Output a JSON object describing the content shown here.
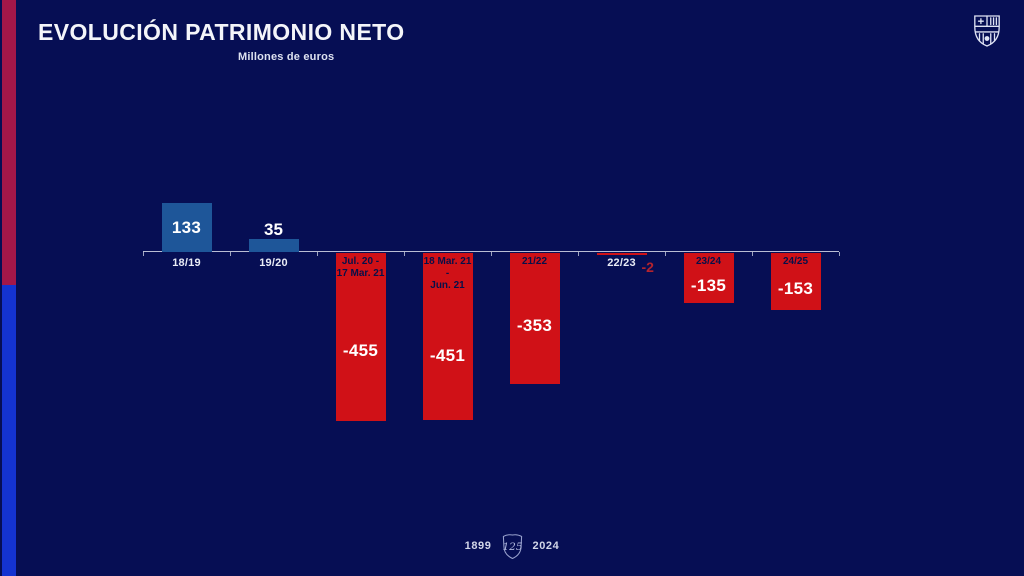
{
  "header": {
    "title": "EVOLUCIÓN PATRIMONIO NETO",
    "subtitle": "Millones de euros"
  },
  "branding": {
    "crest_icon": "fc-barcelona-crest",
    "anniversary_icon": "125-years-shield"
  },
  "footer": {
    "founded_year": "1899",
    "anniversary_year": "2024",
    "emblem_text": "125"
  },
  "theme": {
    "background": "#060e54",
    "stripe_top": "#a31749",
    "stripe_bottom": "#1433d1",
    "axis": "#b9bdd4",
    "positive_bar": "#1e5699",
    "negative_bar": "#d01117",
    "outside_value": "#b5232d",
    "inside_label": "#071049",
    "value_text": "#ffffff"
  },
  "chart_data": {
    "type": "bar",
    "title": "EVOLUCIÓN PATRIMONIO NETO",
    "ylabel": "Millones de euros",
    "xlabel": "",
    "ylim": [
      -470,
      140
    ],
    "grid": false,
    "legend": false,
    "categories": [
      "18/19",
      "19/20",
      "Jul. 20 - 17 Mar. 21",
      "18 Mar. 21 - Jun. 21",
      "21/22",
      "22/23",
      "23/24",
      "24/25"
    ],
    "values": [
      133,
      35,
      -455,
      -451,
      -353,
      -2,
      -135,
      -153
    ],
    "bars": [
      {
        "label_lines": [
          "18/19"
        ],
        "value": 133,
        "value_label": "133",
        "label_pos": "below",
        "value_pos": "inside"
      },
      {
        "label_lines": [
          "19/20"
        ],
        "value": 35,
        "value_label": "35",
        "label_pos": "below",
        "value_pos": "above"
      },
      {
        "label_lines": [
          "Jul. 20 -",
          "17 Mar. 21"
        ],
        "value": -455,
        "value_label": "-455",
        "label_pos": "inside",
        "value_pos": "inside"
      },
      {
        "label_lines": [
          "18 Mar. 21 -",
          "Jun. 21"
        ],
        "value": -451,
        "value_label": "-451",
        "label_pos": "inside",
        "value_pos": "inside"
      },
      {
        "label_lines": [
          "21/22"
        ],
        "value": -353,
        "value_label": "-353",
        "label_pos": "inside",
        "value_pos": "inside"
      },
      {
        "label_lines": [
          "22/23"
        ],
        "value": -2,
        "value_label": "-2",
        "label_pos": "below",
        "value_pos": "beside"
      },
      {
        "label_lines": [
          "23/24"
        ],
        "value": -135,
        "value_label": "-135",
        "label_pos": "inside",
        "value_pos": "inside"
      },
      {
        "label_lines": [
          "24/25"
        ],
        "value": -153,
        "value_label": "-153",
        "label_pos": "inside",
        "value_pos": "inside"
      }
    ]
  }
}
